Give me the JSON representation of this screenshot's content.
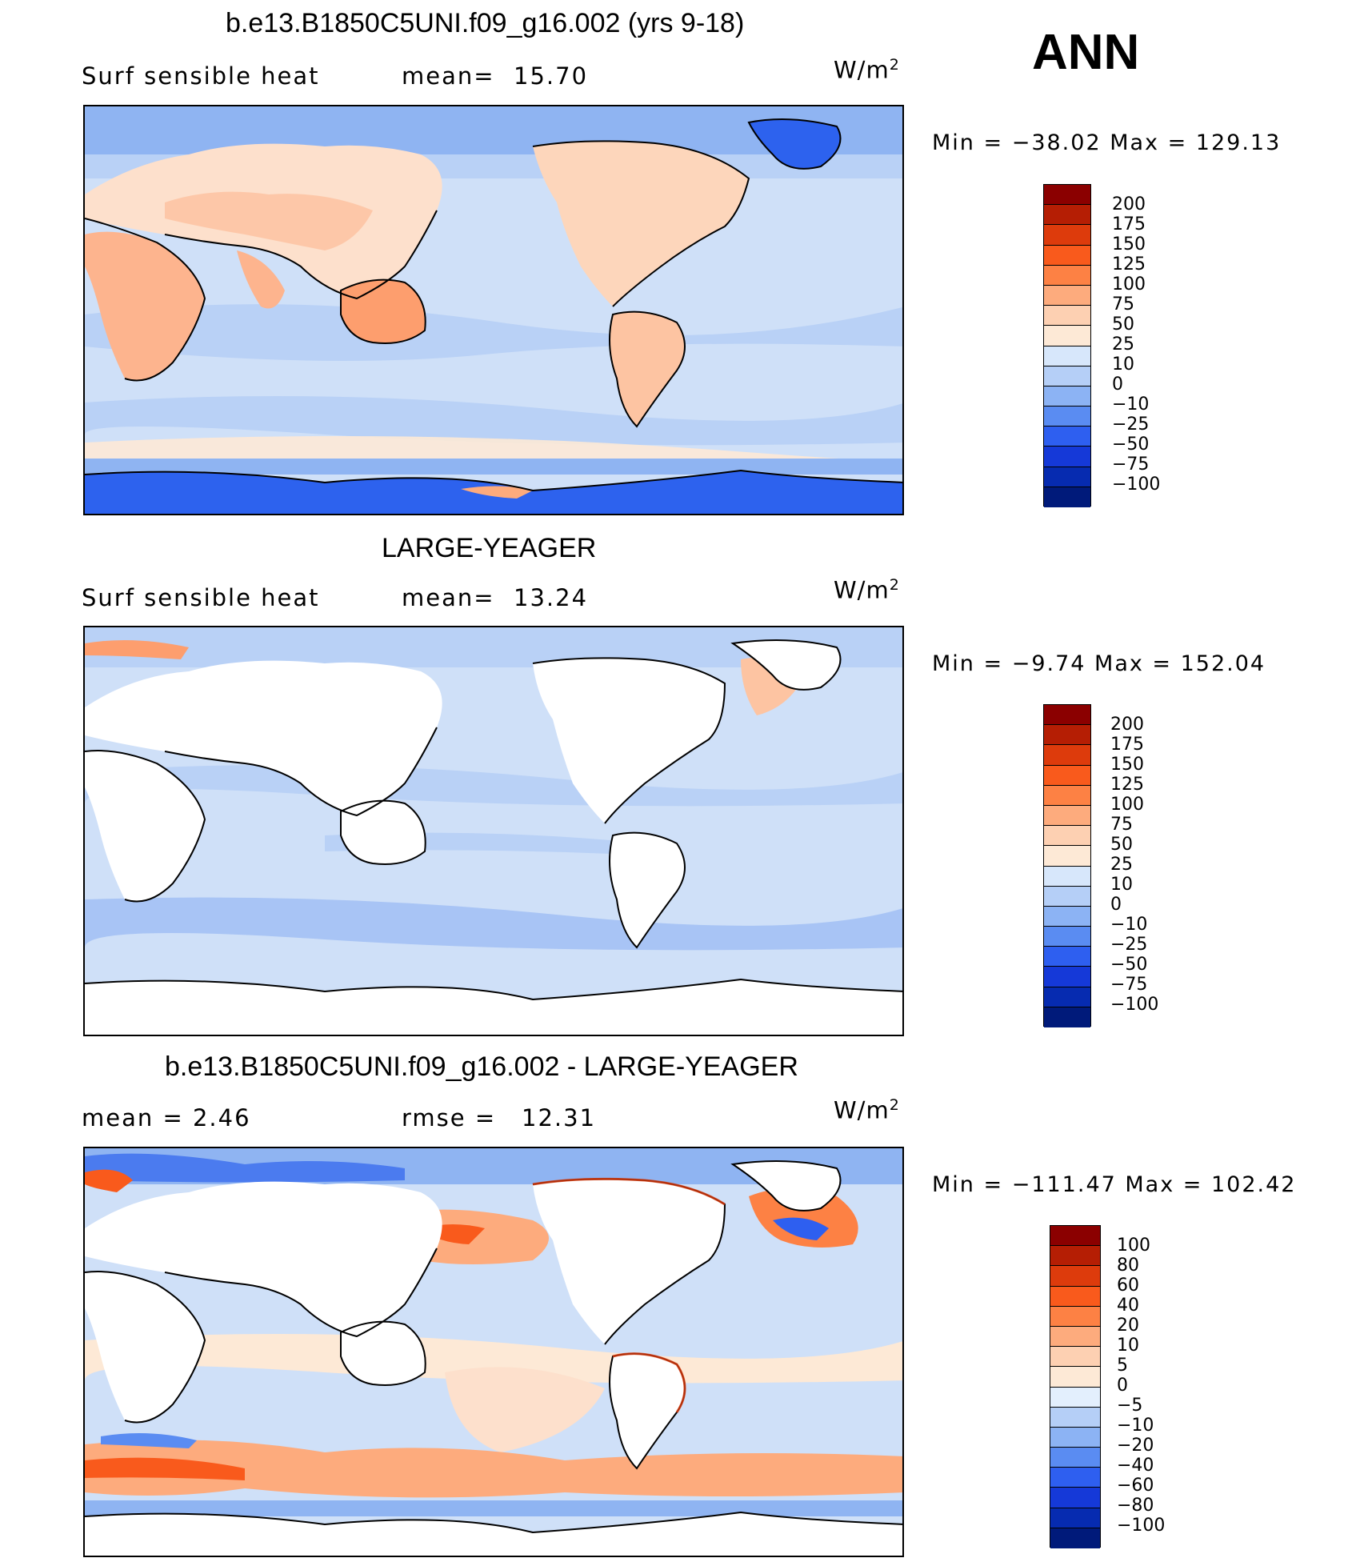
{
  "season": "ANN",
  "units_html": "W/m²",
  "panels": [
    {
      "title": "b.e13.B1850C5UNI.f09_g16.002 (yrs 9-18)",
      "left_text": "Surf  sensible  heat",
      "right_label": "mean=",
      "right_value": "15.70",
      "minmax": "Min  =  −38.02  Max  =  129.13",
      "colorbar_labels": [
        "200",
        "175",
        "150",
        "125",
        "100",
        "75",
        "50",
        "25",
        "10",
        "0",
        "−10",
        "−25",
        "−50",
        "−75",
        "−100"
      ],
      "colors": [
        "#8b0000",
        "#b51e04",
        "#dd3b0c",
        "#f95a1c",
        "#fd8144",
        "#fdab7d",
        "#fdd0b2",
        "#fde9d6",
        "#d7e7fb",
        "#b5cff7",
        "#8cb3f4",
        "#5a8cf2",
        "#2e5ff0",
        "#1539d8",
        "#062bb0",
        "#001a7a"
      ]
    },
    {
      "title": "LARGE-YEAGER",
      "left_text": "Surf  sensible  heat",
      "right_label": "mean=",
      "right_value": "13.24",
      "minmax": "Min  =   −9.74  Max  =  152.04",
      "colorbar_labels": [
        "200",
        "175",
        "150",
        "125",
        "100",
        "75",
        "50",
        "25",
        "10",
        "0",
        "−10",
        "−25",
        "−50",
        "−75",
        "−100"
      ],
      "colors": [
        "#8b0000",
        "#b51e04",
        "#dd3b0c",
        "#f95a1c",
        "#fd8144",
        "#fdab7d",
        "#fdd0b2",
        "#fde9d6",
        "#d7e7fb",
        "#b5cff7",
        "#8cb3f4",
        "#5a8cf2",
        "#2e5ff0",
        "#1539d8",
        "#062bb0",
        "#001a7a"
      ]
    },
    {
      "title": "b.e13.B1850C5UNI.f09_g16.002 - LARGE-YEAGER",
      "left_text": "mean  =      2.46",
      "right_label": "rmse  =",
      "right_value": "12.31",
      "minmax": "Min  =  −111.47  Max  =  102.42",
      "colorbar_labels": [
        "100",
        "80",
        "60",
        "40",
        "20",
        "10",
        "5",
        "0",
        "−5",
        "−10",
        "−20",
        "−40",
        "−60",
        "−80",
        "−100"
      ],
      "colors": [
        "#8b0000",
        "#b51e04",
        "#dd3b0c",
        "#f95a1c",
        "#fd8144",
        "#fdab7d",
        "#fdd0b2",
        "#fde9d6",
        "#e3effd",
        "#b5cff7",
        "#8cb3f4",
        "#5a8cf2",
        "#2e5ff0",
        "#1539d8",
        "#062bb0",
        "#001a7a"
      ]
    }
  ]
}
